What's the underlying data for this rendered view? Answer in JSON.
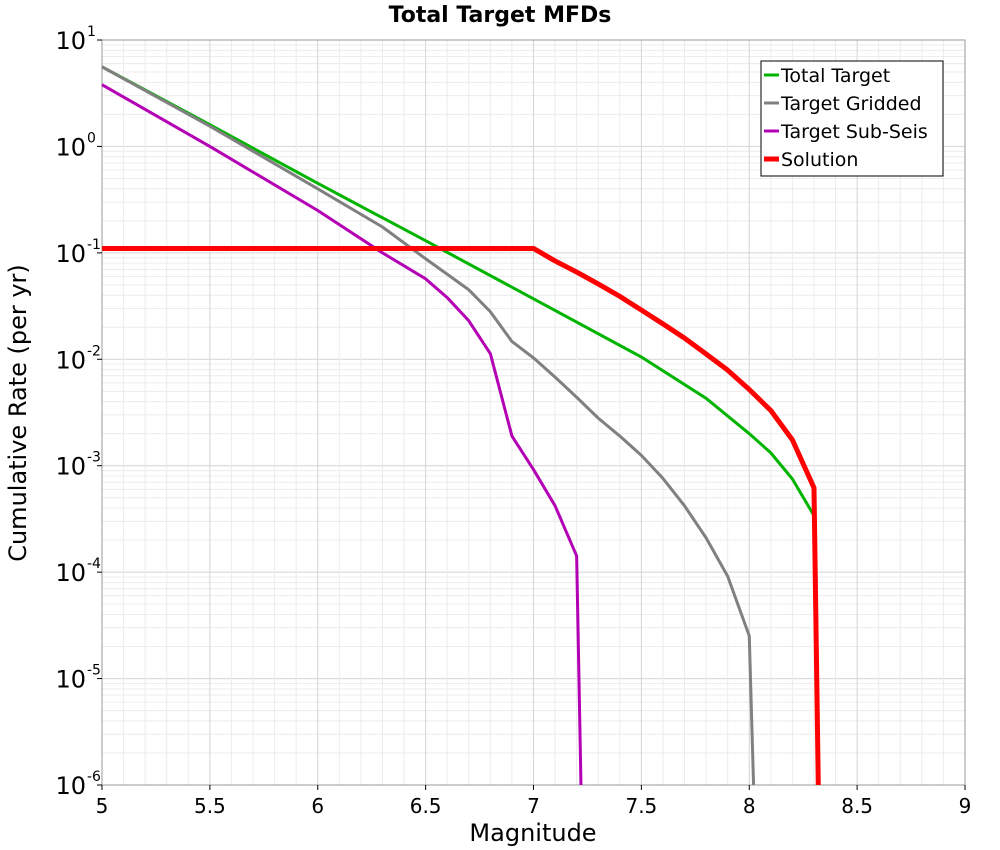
{
  "chart_data": {
    "type": "line",
    "title": "Total Target MFDs",
    "xlabel": "Magnitude",
    "ylabel": "Cumulative Rate (per yr)",
    "xlim": [
      5,
      9
    ],
    "ylim": [
      1e-06,
      10
    ],
    "yscale": "log",
    "grid": true,
    "legend_position": "top-right",
    "x_ticks": [
      "5",
      "5.5",
      "6",
      "6.5",
      "7",
      "7.5",
      "8",
      "8.5",
      "9"
    ],
    "y_ticks": [
      {
        "base": "10",
        "exp": "1"
      },
      {
        "base": "10",
        "exp": "0"
      },
      {
        "base": "10",
        "exp": "-1"
      },
      {
        "base": "10",
        "exp": "-2"
      },
      {
        "base": "10",
        "exp": "-3"
      },
      {
        "base": "10",
        "exp": "-4"
      },
      {
        "base": "10",
        "exp": "-5"
      },
      {
        "base": "10",
        "exp": "-6"
      }
    ],
    "series": [
      {
        "name": "Total Target",
        "color": "#00b400",
        "x": [
          5.0,
          5.5,
          6.0,
          6.5,
          7.0,
          7.5,
          7.8,
          8.0,
          8.1,
          8.2,
          8.3
        ],
        "y": [
          5.6,
          1.6,
          0.45,
          0.13,
          0.037,
          0.0105,
          0.0043,
          0.002,
          0.00132,
          0.00075,
          0.00034
        ]
      },
      {
        "name": "Target Gridded",
        "color": "#808080",
        "x": [
          5.0,
          5.5,
          6.0,
          6.3,
          6.5,
          6.7,
          6.8,
          6.9,
          7.0,
          7.1,
          7.2,
          7.3,
          7.4,
          7.5,
          7.6,
          7.7,
          7.8,
          7.9,
          8.0,
          8.02
        ],
        "y": [
          5.6,
          1.55,
          0.4,
          0.175,
          0.088,
          0.045,
          0.028,
          0.0147,
          0.0103,
          0.0068,
          0.0044,
          0.0028,
          0.0019,
          0.00125,
          0.00076,
          0.00042,
          0.00021,
          9.15e-05,
          2.52e-05,
          1e-06
        ]
      },
      {
        "name": "Target Sub-Seis",
        "color": "#b400b4",
        "x": [
          5.0,
          5.5,
          6.0,
          6.3,
          6.5,
          6.6,
          6.7,
          6.8,
          6.9,
          7.0,
          7.1,
          7.2,
          7.22
        ],
        "y": [
          3.8,
          1.0,
          0.25,
          0.1,
          0.057,
          0.038,
          0.023,
          0.0113,
          0.0019,
          0.00092,
          0.00042,
          0.000142,
          1e-06
        ]
      },
      {
        "name": "Solution",
        "color": "#ff0000",
        "x": [
          5.0,
          7.0,
          7.1,
          7.2,
          7.3,
          7.4,
          7.5,
          7.6,
          7.7,
          7.8,
          7.9,
          8.0,
          8.1,
          8.2,
          8.3,
          8.32
        ],
        "y": [
          0.11,
          0.11,
          0.084,
          0.066,
          0.051,
          0.039,
          0.029,
          0.0215,
          0.0158,
          0.0112,
          0.0079,
          0.0052,
          0.0033,
          0.00175,
          0.00062,
          1e-06
        ]
      }
    ]
  }
}
